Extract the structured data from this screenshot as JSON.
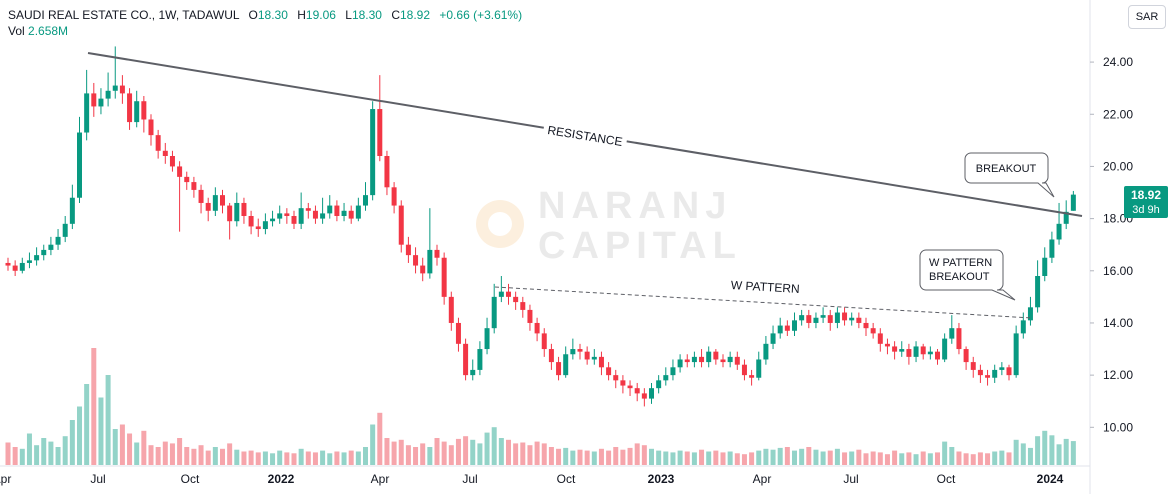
{
  "chart_data": {
    "type": "candlestick",
    "title": "SAUDI REAL ESTATE CO., 1W, TADAWUL",
    "ohlc_labels": [
      "O",
      "H",
      "L",
      "C"
    ],
    "last_bar_labels": {
      "open": "18.30",
      "high": "19.06",
      "low": "18.30",
      "close": "18.92"
    },
    "change_label": "+0.66 (+3.61%)",
    "volume_name": "Vol",
    "volume_label": "2.658M",
    "currency": "SAR",
    "countdown": "3d 9h",
    "watermark": [
      "NARANJ",
      "CAPITAL"
    ],
    "annotations": {
      "resistance": "RESISTANCE",
      "w_pattern": "W PATTERN",
      "breakout": "BREAKOUT",
      "w_breakout": [
        "W PATTERN",
        "BREAKOUT"
      ]
    },
    "x_labels": [
      "Apr",
      "Jul",
      "Oct",
      "2022",
      "Apr",
      "Jul",
      "Oct",
      "2023",
      "Apr",
      "Jul",
      "Oct",
      "2024"
    ],
    "up_color": "#089981",
    "down_color": "#f23645",
    "up_volume_color": "#93d3c8",
    "down_volume_color": "#f6a5ab",
    "ylim": [
      7.98,
      26.38
    ],
    "yticks": [
      {
        "value": 10,
        "label": "10.00"
      },
      {
        "value": 12,
        "label": "12.00"
      },
      {
        "value": 14,
        "label": "14.00"
      },
      {
        "value": 16,
        "label": "16.00"
      },
      {
        "value": 18,
        "label": "18.00"
      },
      {
        "value": 20,
        "label": "20.00"
      },
      {
        "value": 22,
        "label": "22.00"
      },
      {
        "value": 24,
        "label": "24.00"
      }
    ],
    "grid": false,
    "open": [
      16.3,
      16.2,
      16.0,
      16.3,
      16.4,
      16.6,
      16.8,
      17.0,
      17.3,
      17.8,
      18.8,
      21.3,
      22.8,
      22.3,
      22.6,
      22.9,
      23.1,
      22.8,
      21.7,
      22.5,
      21.8,
      21.2,
      20.6,
      20.4,
      20.0,
      19.6,
      19.4,
      19.1,
      18.6,
      18.3,
      18.9,
      18.5,
      17.9,
      18.6,
      18.1,
      17.7,
      17.6,
      17.9,
      18.0,
      18.2,
      18.1,
      17.8,
      18.4,
      18.3,
      18.0,
      18.2,
      18.5,
      18.1,
      18.3,
      18.0,
      18.5,
      18.9,
      22.2,
      20.4,
      19.2,
      18.5,
      17.0,
      16.6,
      16.2,
      15.9,
      16.8,
      16.5,
      15.0,
      14.0,
      13.2,
      12.0,
      12.2,
      13.0,
      13.8,
      15.0,
      15.2,
      15.0,
      14.8,
      14.5,
      14.0,
      13.6,
      13.0,
      12.5,
      12.0,
      12.8,
      13.0,
      12.9,
      12.6,
      12.7,
      12.3,
      12.0,
      11.8,
      11.6,
      11.5,
      11.3,
      11.1,
      11.5,
      11.8,
      12.0,
      12.3,
      12.6,
      12.5,
      12.7,
      12.5,
      12.9,
      12.6,
      12.5,
      12.7,
      12.4,
      12.0,
      11.9,
      12.6,
      13.2,
      13.6,
      13.9,
      13.7,
      14.1,
      14.3,
      14.0,
      14.2,
      14.3,
      14.0,
      14.4,
      14.1,
      14.2,
      14.0,
      13.8,
      13.6,
      13.2,
      13.1,
      12.9,
      13.0,
      12.7,
      13.1,
      12.8,
      12.9,
      12.6,
      13.4,
      13.8,
      13.0,
      12.5,
      12.2,
      12.0,
      11.9,
      12.2,
      12.3,
      12.0,
      13.6,
      14.1,
      14.6,
      15.8,
      16.5,
      17.2,
      17.8,
      18.3
    ],
    "high": [
      16.5,
      16.4,
      16.5,
      16.7,
      16.9,
      17.0,
      17.3,
      17.6,
      18.1,
      19.3,
      21.9,
      23.7,
      23.2,
      23.0,
      23.6,
      24.6,
      23.5,
      23.0,
      22.9,
      22.7,
      22.0,
      21.4,
      20.9,
      20.6,
      20.2,
      19.8,
      19.6,
      19.3,
      18.8,
      19.2,
      19.1,
      18.6,
      19.0,
      18.8,
      18.3,
      18.0,
      18.2,
      18.3,
      18.5,
      18.4,
      18.3,
      19.0,
      18.6,
      18.5,
      18.8,
      18.9,
      18.7,
      18.6,
      18.5,
      18.8,
      19.4,
      22.5,
      23.5,
      20.6,
      19.4,
      18.7,
      17.3,
      16.9,
      16.5,
      18.4,
      17.0,
      16.7,
      15.2,
      14.2,
      13.4,
      12.6,
      13.3,
      14.2,
      15.5,
      15.8,
      15.5,
      15.2,
      15.0,
      14.7,
      14.2,
      13.8,
      13.2,
      12.7,
      13.1,
      13.4,
      13.2,
      13.1,
      13.0,
      12.9,
      12.5,
      12.2,
      12.0,
      11.8,
      11.7,
      11.5,
      11.7,
      12.0,
      12.3,
      12.6,
      12.8,
      12.8,
      12.9,
      13.0,
      13.1,
      13.0,
      12.8,
      12.9,
      12.9,
      12.6,
      12.2,
      12.9,
      13.5,
      13.9,
      14.2,
      14.1,
      14.4,
      14.5,
      14.5,
      14.4,
      14.6,
      14.5,
      14.6,
      14.6,
      14.4,
      14.4,
      14.2,
      14.0,
      13.8,
      13.4,
      13.3,
      13.3,
      13.2,
      13.3,
      13.2,
      13.1,
      13.0,
      13.6,
      14.3,
      14.0,
      13.1,
      12.7,
      12.4,
      12.2,
      12.4,
      12.5,
      12.4,
      13.9,
      14.4,
      15.0,
      16.4,
      16.9,
      17.5,
      18.6,
      18.7,
      19.06
    ],
    "low": [
      16.0,
      15.8,
      15.9,
      16.1,
      16.2,
      16.4,
      16.6,
      16.8,
      17.1,
      17.6,
      18.6,
      21.0,
      21.9,
      22.0,
      22.3,
      22.6,
      22.4,
      21.4,
      21.5,
      21.3,
      20.8,
      20.3,
      20.1,
      19.8,
      17.5,
      19.1,
      18.8,
      18.2,
      17.9,
      18.1,
      18.2,
      17.2,
      17.7,
      17.8,
      17.4,
      17.3,
      17.4,
      17.7,
      17.8,
      17.8,
      17.6,
      17.6,
      18.0,
      17.8,
      17.8,
      18.0,
      17.9,
      17.9,
      17.8,
      17.9,
      18.3,
      18.7,
      20.2,
      18.9,
      18.2,
      16.7,
      16.3,
      15.9,
      15.6,
      15.7,
      16.2,
      14.7,
      13.7,
      12.9,
      11.8,
      11.8,
      12.0,
      12.8,
      13.6,
      14.8,
      14.7,
      14.5,
      14.2,
      13.7,
      13.3,
      12.7,
      12.2,
      11.8,
      11.9,
      12.6,
      12.6,
      12.4,
      12.4,
      12.0,
      11.8,
      11.5,
      11.3,
      11.2,
      11.0,
      10.8,
      10.9,
      11.3,
      11.6,
      11.8,
      12.1,
      12.3,
      12.3,
      12.3,
      12.3,
      12.4,
      12.3,
      12.3,
      12.2,
      11.8,
      11.6,
      11.8,
      12.4,
      13.0,
      13.4,
      13.5,
      13.5,
      13.9,
      13.8,
      13.8,
      14.0,
      13.7,
      13.8,
      13.9,
      13.9,
      13.8,
      13.5,
      13.4,
      12.9,
      12.8,
      12.6,
      12.7,
      12.4,
      12.5,
      12.6,
      12.6,
      12.4,
      12.5,
      13.2,
      12.8,
      12.2,
      11.9,
      11.7,
      11.6,
      11.7,
      12.0,
      11.8,
      11.9,
      13.4,
      13.9,
      14.4,
      15.6,
      16.3,
      17.0,
      17.6,
      18.3
    ],
    "close": [
      16.2,
      16.0,
      16.3,
      16.4,
      16.6,
      16.8,
      17.0,
      17.3,
      17.8,
      18.8,
      21.3,
      22.8,
      22.3,
      22.6,
      22.9,
      23.1,
      22.8,
      21.7,
      22.5,
      21.8,
      21.2,
      20.6,
      20.4,
      20.0,
      19.6,
      19.4,
      19.1,
      18.6,
      18.3,
      18.9,
      18.5,
      17.9,
      18.6,
      18.1,
      17.7,
      17.6,
      17.9,
      18.0,
      18.2,
      18.1,
      17.8,
      18.4,
      18.3,
      18.0,
      18.2,
      18.5,
      18.1,
      18.3,
      18.0,
      18.5,
      18.9,
      22.2,
      20.4,
      19.2,
      18.5,
      17.0,
      16.6,
      16.2,
      15.9,
      16.8,
      16.5,
      15.0,
      14.0,
      13.2,
      12.0,
      12.2,
      13.0,
      13.8,
      15.0,
      15.2,
      15.0,
      14.8,
      14.5,
      14.0,
      13.6,
      13.0,
      12.5,
      12.0,
      12.8,
      13.0,
      12.9,
      12.6,
      12.7,
      12.3,
      12.0,
      11.8,
      11.6,
      11.5,
      11.3,
      11.1,
      11.5,
      11.8,
      12.0,
      12.3,
      12.6,
      12.5,
      12.7,
      12.5,
      12.9,
      12.6,
      12.5,
      12.7,
      12.4,
      12.0,
      11.9,
      12.6,
      13.2,
      13.6,
      13.9,
      13.7,
      14.1,
      14.3,
      14.0,
      14.2,
      14.3,
      14.0,
      14.4,
      14.1,
      14.2,
      14.0,
      13.8,
      13.6,
      13.2,
      13.1,
      12.9,
      13.0,
      12.7,
      13.1,
      12.8,
      12.9,
      12.6,
      13.4,
      13.8,
      13.0,
      12.5,
      12.2,
      12.0,
      11.9,
      12.2,
      12.3,
      12.0,
      13.6,
      14.1,
      14.6,
      15.8,
      16.5,
      17.2,
      17.8,
      18.26,
      18.92
    ],
    "volume": [
      2.5,
      2.0,
      1.8,
      3.5,
      2.2,
      3.0,
      2.6,
      2.0,
      3.2,
      5.0,
      6.5,
      9.0,
      13.0,
      7.5,
      10.0,
      4.0,
      4.5,
      3.5,
      2.5,
      3.8,
      2.2,
      2.0,
      2.6,
      2.4,
      3.0,
      2.0,
      1.8,
      2.2,
      1.6,
      2.0,
      1.8,
      2.4,
      1.7,
      1.5,
      1.6,
      1.4,
      1.5,
      1.3,
      1.6,
      1.4,
      1.3,
      1.8,
      1.5,
      1.4,
      1.6,
      1.3,
      1.5,
      1.4,
      1.6,
      1.5,
      2.0,
      4.5,
      5.8,
      3.0,
      2.6,
      2.8,
      2.2,
      2.0,
      2.4,
      2.0,
      3.0,
      2.6,
      2.2,
      2.9,
      3.2,
      2.8,
      2.4,
      3.6,
      4.2,
      3.0,
      2.8,
      2.4,
      2.5,
      2.2,
      2.6,
      2.4,
      2.0,
      1.8,
      1.9,
      1.6,
      1.7,
      1.6,
      1.5,
      1.8,
      1.6,
      2.0,
      1.7,
      1.9,
      2.4,
      2.2,
      1.8,
      1.6,
      1.5,
      1.4,
      1.6,
      1.5,
      1.4,
      1.7,
      1.5,
      1.6,
      1.4,
      1.5,
      1.3,
      1.2,
      1.4,
      1.6,
      1.8,
      1.7,
      1.9,
      2.0,
      1.6,
      1.8,
      2.0,
      1.7,
      1.5,
      1.6,
      1.8,
      1.4,
      1.5,
      1.7,
      1.3,
      1.5,
      1.4,
      1.2,
      1.6,
      1.3,
      1.4,
      1.2,
      1.5,
      1.3,
      1.4,
      2.6,
      2.0,
      1.5,
      1.3,
      1.2,
      1.4,
      1.3,
      1.5,
      1.6,
      1.4,
      2.8,
      2.4,
      1.9,
      3.2,
      3.8,
      3.3,
      2.3,
      2.9,
      2.658
    ]
  }
}
